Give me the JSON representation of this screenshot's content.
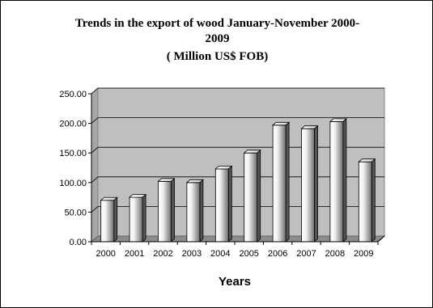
{
  "chart_data": {
    "type": "bar",
    "title_line1": "Trends in the export of wood January-November 2000-",
    "title_line2": "2009",
    "subtitle": "( Million US$ FOB)",
    "xlabel": "Years",
    "ylabel": "",
    "categories": [
      "2000",
      "2001",
      "2002",
      "2003",
      "2004",
      "2005",
      "2006",
      "2007",
      "2008",
      "2009"
    ],
    "values": [
      70,
      75,
      102,
      100,
      123,
      150,
      197,
      191,
      203,
      135
    ],
    "ylim": [
      0,
      250
    ],
    "yticks": [
      "0.00",
      "50.00",
      "100.00",
      "150.00",
      "200.00",
      "250.00"
    ],
    "grid": true,
    "legend": "none",
    "colors": {
      "plot_background": "#bfbfbf",
      "floor": "#8c8c8c",
      "gridline": "#000000",
      "bar_light": "#ffffff",
      "bar_dark": "#6e6e6e"
    }
  }
}
